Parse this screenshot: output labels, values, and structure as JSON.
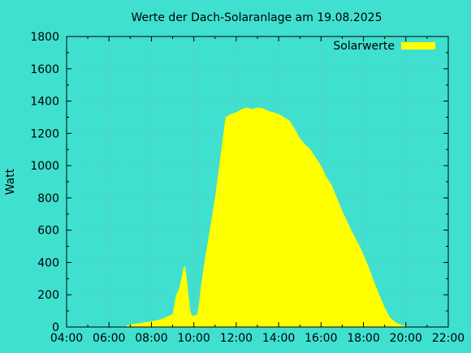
{
  "chart_data": {
    "type": "area",
    "title": "Werte der Dach-Solaranlage am 19.08.2025",
    "xlabel": "",
    "ylabel": "Watt",
    "xlim": [
      "04:00",
      "22:00"
    ],
    "ylim": [
      0,
      1800
    ],
    "x_ticks": [
      "04:00",
      "06:00",
      "08:00",
      "10:00",
      "12:00",
      "14:00",
      "16:00",
      "18:00",
      "20:00",
      "22:00"
    ],
    "y_ticks": [
      0,
      200,
      400,
      600,
      800,
      1000,
      1200,
      1400,
      1600,
      1800
    ],
    "grid": true,
    "legend_position": "top-right",
    "series": [
      {
        "name": "Solarwerte",
        "color": "#FFFF00",
        "x": [
          "06:50",
          "07:00",
          "07:30",
          "08:00",
          "08:30",
          "08:45",
          "09:00",
          "09:10",
          "09:15",
          "09:20",
          "09:25",
          "09:30",
          "09:35",
          "09:40",
          "09:45",
          "09:50",
          "09:55",
          "10:00",
          "10:10",
          "10:15",
          "10:20",
          "10:30",
          "10:45",
          "11:00",
          "11:15",
          "11:30",
          "11:45",
          "12:00",
          "12:15",
          "12:30",
          "12:45",
          "13:00",
          "13:15",
          "13:30",
          "13:45",
          "14:00",
          "14:15",
          "14:30",
          "14:45",
          "15:00",
          "15:15",
          "15:30",
          "15:45",
          "16:00",
          "16:15",
          "16:30",
          "16:45",
          "17:00",
          "17:15",
          "17:30",
          "17:45",
          "18:00",
          "18:15",
          "18:30",
          "18:45",
          "19:00",
          "19:15",
          "19:30",
          "19:45",
          "20:00",
          "20:10",
          "20:20"
        ],
        "y": [
          10,
          15,
          25,
          35,
          50,
          65,
          80,
          200,
          220,
          250,
          300,
          360,
          380,
          300,
          200,
          100,
          70,
          70,
          80,
          150,
          250,
          400,
          600,
          800,
          1050,
          1300,
          1320,
          1330,
          1350,
          1360,
          1350,
          1360,
          1355,
          1340,
          1330,
          1320,
          1300,
          1280,
          1230,
          1170,
          1130,
          1100,
          1050,
          1000,
          930,
          880,
          800,
          720,
          650,
          580,
          520,
          450,
          370,
          280,
          200,
          120,
          60,
          30,
          15,
          5,
          2,
          0
        ]
      }
    ]
  }
}
